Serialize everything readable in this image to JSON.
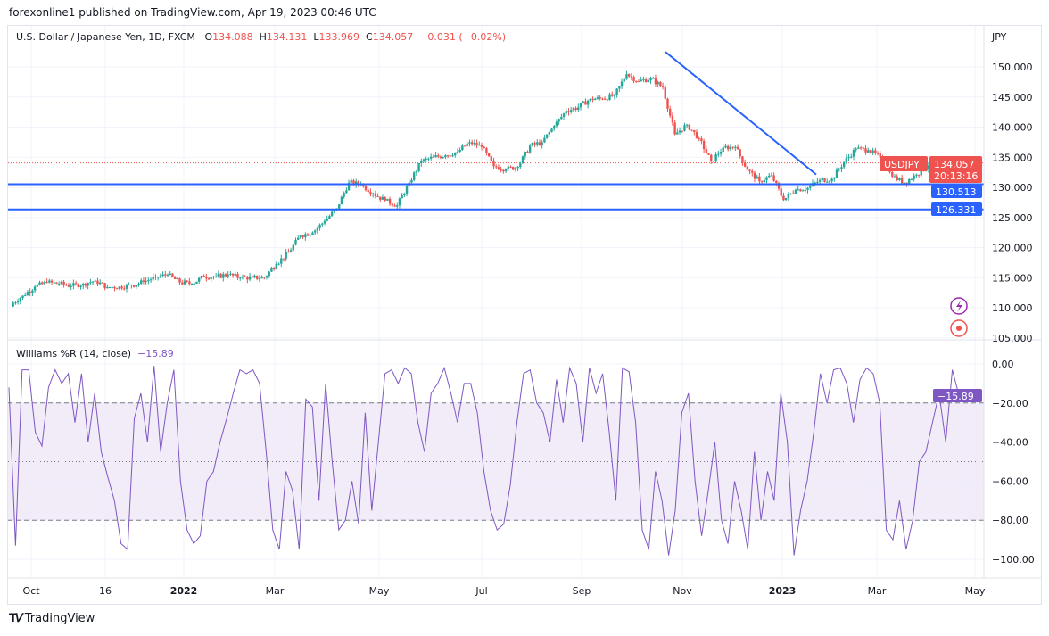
{
  "header": {
    "published": "forexonline1 published on TradingView.com, Apr 19, 2023 00:46 UTC"
  },
  "legend": {
    "symbol": "U.S. Dollar / Japanese Yen, 1D, FXCM",
    "o_label": "O",
    "o": "134.088",
    "h_label": "H",
    "h": "134.131",
    "l_label": "L",
    "l": "133.969",
    "c_label": "C",
    "c": "134.057",
    "change": "−0.031 (−0.02%)"
  },
  "indicator": {
    "name": "Williams %R (14, close)",
    "value": "−15.89"
  },
  "price_axis": {
    "currency": "JPY",
    "ticks": [
      "150.000",
      "145.000",
      "140.000",
      "135.000",
      "130.000",
      "125.000",
      "120.000",
      "115.000",
      "110.000",
      "105.000"
    ]
  },
  "indicator_axis": {
    "ticks": [
      "0.00",
      "−20.00",
      "−40.00",
      "−60.00",
      "−80.00",
      "−100.00"
    ]
  },
  "badges": {
    "symbol": "USDJPY",
    "price": "134.057",
    "countdown": "20:13:16",
    "level1": "130.513",
    "level2": "126.331"
  },
  "time_axis": [
    "Oct",
    "16",
    "2022",
    "Mar",
    "May",
    "Jul",
    "Sep",
    "Nov",
    "2023",
    "Mar",
    "May"
  ],
  "footer": {
    "brand": "TradingView"
  },
  "colors": {
    "up": "#26a69a",
    "down": "#ef5350",
    "line": "#2962ff",
    "wr": "#7e57c2",
    "band": "#ede7f6"
  },
  "chart_data": [
    {
      "type": "candlestick",
      "title": "U.S. Dollar / Japanese Yen, 1D, FXCM",
      "ylabel": "JPY",
      "ylim": [
        105,
        152
      ],
      "x_start": "2021-09-27",
      "x_step": "1 week",
      "closes": [
        110.5,
        112.0,
        113.5,
        114.2,
        114.0,
        113.6,
        114.0,
        114.5,
        113.4,
        113.5,
        113.7,
        114.3,
        115.1,
        115.5,
        114.2,
        114.0,
        115.2,
        115.2,
        115.5,
        115.0,
        115.0,
        115.0,
        117.3,
        119.2,
        122.0,
        122.5,
        124.4,
        126.5,
        130.8,
        130.5,
        129.0,
        127.8,
        127.0,
        130.8,
        134.3,
        135.0,
        135.3,
        135.9,
        137.5,
        136.7,
        133.5,
        133.0,
        133.4,
        136.9,
        137.5,
        140.2,
        142.7,
        143.3,
        144.7,
        144.7,
        145.3,
        148.8,
        147.6,
        148.1,
        146.6,
        138.8,
        140.4,
        138.1,
        134.3,
        136.6,
        136.7,
        132.9,
        131.0,
        132.0,
        127.9,
        129.6,
        129.9,
        131.2,
        131.4,
        134.2,
        136.4,
        136.2,
        135.0,
        131.8,
        130.8,
        132.1,
        133.6,
        134.4,
        134.057
      ],
      "horizontal_levels": [
        130.513,
        126.331
      ],
      "trendline": {
        "from": {
          "date": "2022-10-21",
          "price": 151.9
        },
        "to": {
          "date": "2023-01-20",
          "price": 130.8
        }
      },
      "last_price": 134.057
    },
    {
      "type": "line",
      "title": "Williams %R (14, close)",
      "ylim": [
        -100,
        0
      ],
      "bands": [
        -20,
        -50,
        -80
      ],
      "x_start": "2021-09-27",
      "x_end": "2023-04-18",
      "values": [
        -12,
        -93,
        -3,
        -3,
        -35,
        -42,
        -12,
        -3,
        -10,
        -5,
        -30,
        -5,
        -40,
        -15,
        -45,
        -58,
        -70,
        -92,
        -95,
        -28,
        -15,
        -40,
        -1,
        -45,
        -20,
        -3,
        -60,
        -85,
        -92,
        -88,
        -60,
        -55,
        -40,
        -28,
        -15,
        -3,
        -5,
        -3,
        -10,
        -45,
        -85,
        -95,
        -55,
        -65,
        -95,
        -18,
        -22,
        -70,
        -10,
        -50,
        -85,
        -80,
        -60,
        -82,
        -25,
        -75,
        -40,
        -5,
        -3,
        -10,
        -2,
        -5,
        -30,
        -45,
        -15,
        -10,
        -2,
        -15,
        -30,
        -10,
        -10,
        -25,
        -55,
        -75,
        -85,
        -82,
        -62,
        -30,
        -5,
        -3,
        -20,
        -25,
        -40,
        -8,
        -30,
        -2,
        -10,
        -40,
        -2,
        -15,
        -5,
        -35,
        -70,
        -2,
        -4,
        -30,
        -85,
        -95,
        -55,
        -70,
        -98,
        -75,
        -25,
        -15,
        -60,
        -88,
        -65,
        -40,
        -80,
        -92,
        -60,
        -75,
        -95,
        -45,
        -80,
        -55,
        -70,
        -15,
        -40,
        -98,
        -75,
        -60,
        -35,
        -5,
        -20,
        -3,
        -2,
        -10,
        -30,
        -8,
        -2,
        -5,
        -20,
        -85,
        -90,
        -70,
        -95,
        -80,
        -50,
        -45,
        -30,
        -15,
        -40,
        -3,
        -15.89
      ]
    }
  ]
}
